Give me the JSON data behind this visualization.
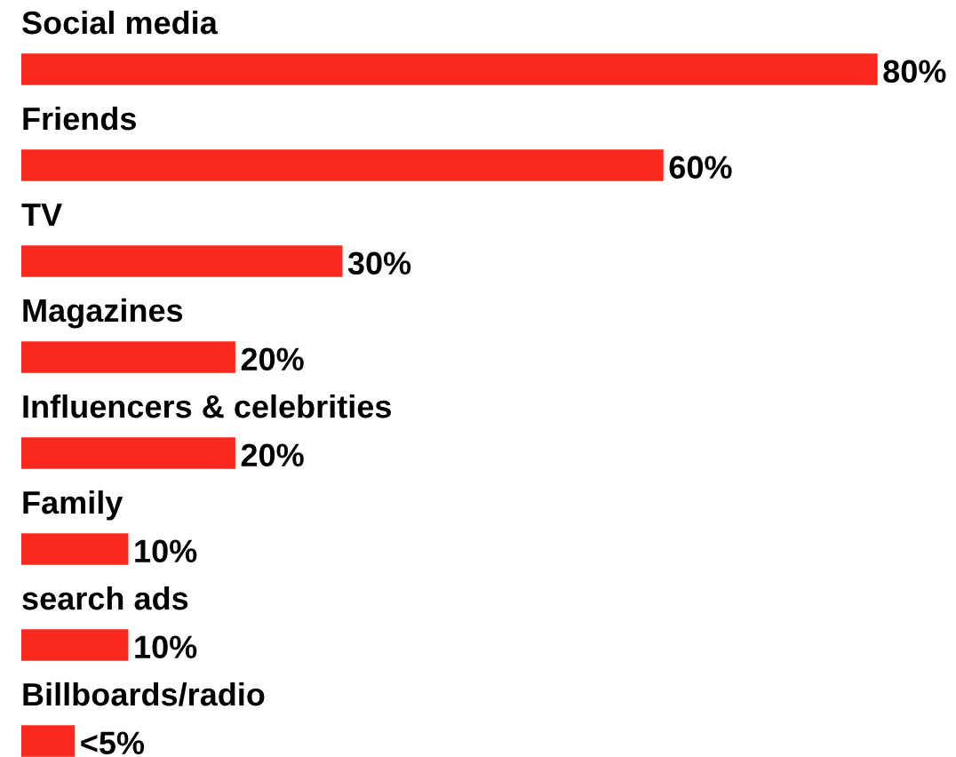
{
  "chart_data": {
    "type": "bar",
    "orientation": "horizontal",
    "categories": [
      "Social media",
      "Friends",
      "TV",
      "Magazines",
      "Influencers & celebrities",
      "Family",
      "search ads",
      "Billboards/radio"
    ],
    "values": [
      80,
      60,
      30,
      20,
      20,
      10,
      10,
      5
    ],
    "value_labels": [
      "80%",
      "60%",
      "30%",
      "20%",
      "20%",
      "10%",
      "10%",
      "<5%"
    ],
    "color": "#fc2a1e"
  }
}
